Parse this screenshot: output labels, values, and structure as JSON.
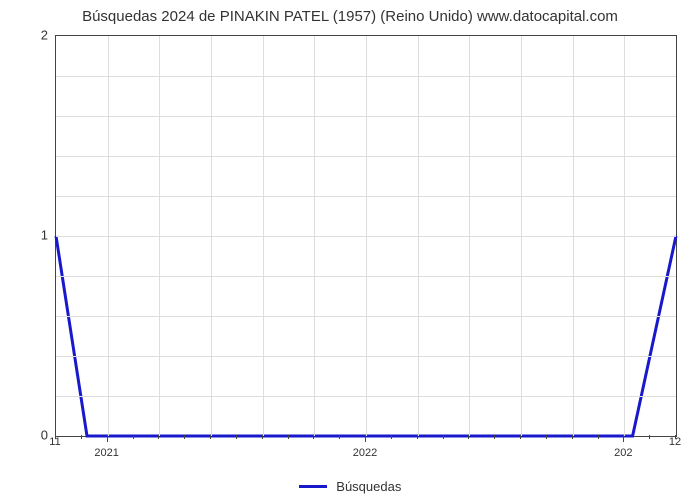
{
  "chart": {
    "type": "line",
    "title": "Búsquedas 2024 de PINAKIN PATEL (1957) (Reino Unido) www.datocapital.com",
    "title_fontsize": 15,
    "title_color": "#333333",
    "background_color": "#ffffff",
    "plot_border_color": "#444444",
    "grid_color": "#dddddd",
    "line_color": "#1919cc",
    "line_width": 3,
    "x": {
      "domain_min": 11,
      "domain_max": 12,
      "major_tick_values": [
        11.0833,
        11.5,
        11.9167
      ],
      "major_tick_labels": [
        "2021",
        "2022",
        "202"
      ],
      "minor_tick_count": 24,
      "left_under_label": "11",
      "right_under_label": "12",
      "label_fontsize": 11,
      "label_color": "#333333"
    },
    "y": {
      "min": 0,
      "max": 2,
      "major_ticks": [
        0,
        1,
        2
      ],
      "minor_grid_step": 0.2,
      "label_fontsize": 13,
      "label_color": "#333333"
    },
    "series": [
      {
        "name": "Búsquedas",
        "color": "#1919cc",
        "points": [
          [
            11.0,
            1.0
          ],
          [
            11.05,
            0.0
          ],
          [
            11.93,
            0.0
          ],
          [
            12.0,
            1.0
          ]
        ]
      }
    ],
    "legend": {
      "label": "Búsquedas",
      "position": "bottom-center",
      "swatch_color": "#1919cc",
      "fontsize": 13
    }
  }
}
